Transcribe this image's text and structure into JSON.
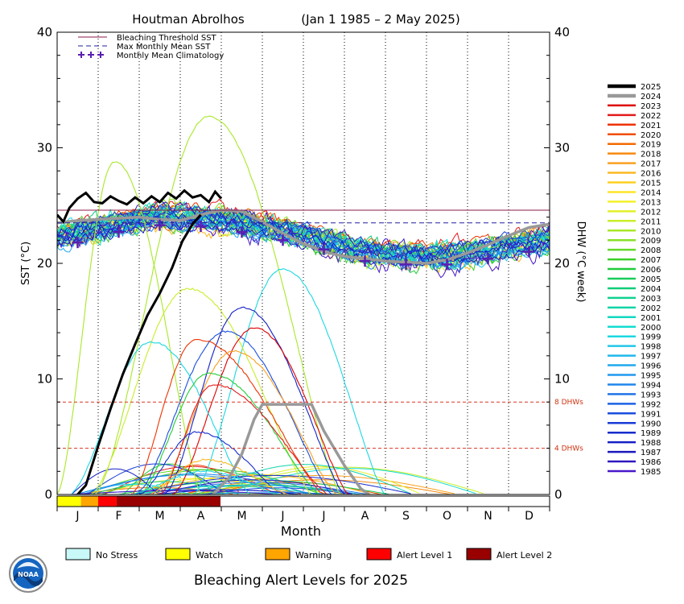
{
  "chart_data": {
    "type": "line",
    "title": "Houtman Abrolhos",
    "date_range": "(Jan 1 1985 – 2 May 2025)",
    "xlabel": "Month",
    "ylabel_left": "SST (°C)",
    "ylabel_right": "DHW (°C week)",
    "ylim": [
      0,
      40
    ],
    "x_months": [
      "J",
      "F",
      "M",
      "A",
      "M",
      "J",
      "J",
      "A",
      "S",
      "O",
      "N",
      "D"
    ],
    "y_ticks": [
      0,
      10,
      20,
      30,
      40
    ],
    "bleaching_threshold_sst": 24.6,
    "max_monthly_mean_sst": 23.5,
    "dhw_thresholds": [
      {
        "value": 8,
        "label": "8 DHWs"
      },
      {
        "value": 4,
        "label": "4 DHWs"
      }
    ],
    "legend_top": [
      {
        "label": "Bleaching Threshold SST",
        "style": "solid",
        "color": "#8b1a4a"
      },
      {
        "label": "Max Monthly Mean SST",
        "style": "dashed",
        "color": "#2020a0"
      },
      {
        "label": "Monthly Mean Climatology",
        "style": "plus",
        "color": "#5a1fb0"
      }
    ],
    "climatology": [
      {
        "month": 0.5,
        "value": 21.8
      },
      {
        "month": 1.5,
        "value": 22.7
      },
      {
        "month": 2.5,
        "value": 23.3
      },
      {
        "month": 3.5,
        "value": 23.2
      },
      {
        "month": 4.5,
        "value": 22.7
      },
      {
        "month": 5.5,
        "value": 22.0
      },
      {
        "month": 6.5,
        "value": 21.2
      },
      {
        "month": 7.5,
        "value": 20.2
      },
      {
        "month": 8.5,
        "value": 19.9
      },
      {
        "month": 9.5,
        "value": 19.9
      },
      {
        "month": 10.5,
        "value": 20.4
      },
      {
        "month": 11.5,
        "value": 21.0
      }
    ],
    "years": [
      {
        "year": "2025",
        "color": "#000000"
      },
      {
        "year": "2024",
        "color": "#999999"
      },
      {
        "year": "2023",
        "color": "#dd0000"
      },
      {
        "year": "2022",
        "color": "#e31a1c"
      },
      {
        "year": "2021",
        "color": "#ee3300"
      },
      {
        "year": "2020",
        "color": "#f04e00"
      },
      {
        "year": "2019",
        "color": "#f46a00"
      },
      {
        "year": "2018",
        "color": "#f68a10"
      },
      {
        "year": "2017",
        "color": "#f9a020"
      },
      {
        "year": "2016",
        "color": "#fbb820"
      },
      {
        "year": "2015",
        "color": "#fdd020"
      },
      {
        "year": "2014",
        "color": "#fde526"
      },
      {
        "year": "2013",
        "color": "#f3f02a"
      },
      {
        "year": "2012",
        "color": "#e2f02a"
      },
      {
        "year": "2011",
        "color": "#c8ee2a"
      },
      {
        "year": "2010",
        "color": "#a8e82a"
      },
      {
        "year": "2009",
        "color": "#88e028"
      },
      {
        "year": "2008",
        "color": "#64d828"
      },
      {
        "year": "2007",
        "color": "#3cd028"
      },
      {
        "year": "2006",
        "color": "#22cc3a"
      },
      {
        "year": "2005",
        "color": "#18cc5a"
      },
      {
        "year": "2004",
        "color": "#10cc78"
      },
      {
        "year": "2003",
        "color": "#10d090"
      },
      {
        "year": "2002",
        "color": "#10d4a8"
      },
      {
        "year": "2001",
        "color": "#10d8c0"
      },
      {
        "year": "2000",
        "color": "#14dcd0"
      },
      {
        "year": "1999",
        "color": "#1cd8e0"
      },
      {
        "year": "1998",
        "color": "#20c8e8"
      },
      {
        "year": "1997",
        "color": "#20b8ec"
      },
      {
        "year": "1996",
        "color": "#20a8ee"
      },
      {
        "year": "1995",
        "color": "#2098ee"
      },
      {
        "year": "1994",
        "color": "#2086ec"
      },
      {
        "year": "1993",
        "color": "#2074e8"
      },
      {
        "year": "1992",
        "color": "#1c60e4"
      },
      {
        "year": "1991",
        "color": "#1a4ede"
      },
      {
        "year": "1990",
        "color": "#183cd6"
      },
      {
        "year": "1989",
        "color": "#162ccc"
      },
      {
        "year": "1988",
        "color": "#1420c4"
      },
      {
        "year": "1987",
        "color": "#1c18bc"
      },
      {
        "year": "1986",
        "color": "#3018c0"
      },
      {
        "year": "1985",
        "color": "#4818c8"
      }
    ],
    "sst_2025": [
      [
        0.0,
        24.2
      ],
      [
        0.15,
        23.6
      ],
      [
        0.3,
        24.8
      ],
      [
        0.5,
        25.6
      ],
      [
        0.7,
        26.1
      ],
      [
        0.9,
        25.3
      ],
      [
        1.1,
        25.2
      ],
      [
        1.3,
        25.8
      ],
      [
        1.5,
        25.4
      ],
      [
        1.7,
        25.1
      ],
      [
        1.9,
        25.7
      ],
      [
        2.1,
        25.2
      ],
      [
        2.3,
        25.8
      ],
      [
        2.5,
        25.3
      ],
      [
        2.7,
        26.1
      ],
      [
        2.9,
        25.6
      ],
      [
        3.1,
        26.3
      ],
      [
        3.3,
        25.7
      ],
      [
        3.5,
        25.9
      ],
      [
        3.7,
        25.3
      ],
      [
        3.85,
        26.2
      ],
      [
        4.0,
        25.6
      ]
    ],
    "sst_2024": [
      [
        0.0,
        23.5
      ],
      [
        0.5,
        23.7
      ],
      [
        1.0,
        23.8
      ],
      [
        1.5,
        23.9
      ],
      [
        2.0,
        24.0
      ],
      [
        2.5,
        23.8
      ],
      [
        3.0,
        23.7
      ],
      [
        3.5,
        24.2
      ],
      [
        4.0,
        24.6
      ],
      [
        4.5,
        24.5
      ],
      [
        5.0,
        23.6
      ],
      [
        5.5,
        22.6
      ],
      [
        6.0,
        21.7
      ],
      [
        6.5,
        21.0
      ],
      [
        7.0,
        20.6
      ],
      [
        7.5,
        20.4
      ],
      [
        8.0,
        20.2
      ],
      [
        8.5,
        20.1
      ],
      [
        9.0,
        20.0
      ],
      [
        9.5,
        20.3
      ],
      [
        10.0,
        20.9
      ],
      [
        10.5,
        21.6
      ],
      [
        11.0,
        22.4
      ],
      [
        11.5,
        23.1
      ],
      [
        12.0,
        23.4
      ]
    ],
    "dhw_2025": [
      [
        0.5,
        0
      ],
      [
        0.7,
        0.8
      ],
      [
        1.0,
        4.2
      ],
      [
        1.3,
        7.4
      ],
      [
        1.6,
        10.4
      ],
      [
        1.9,
        13.0
      ],
      [
        2.2,
        15.5
      ],
      [
        2.5,
        17.4
      ],
      [
        2.8,
        19.6
      ],
      [
        3.05,
        21.9
      ],
      [
        3.3,
        23.4
      ],
      [
        3.5,
        24.2
      ]
    ],
    "dhw_2024": [
      [
        3.8,
        0
      ],
      [
        4.2,
        1.5
      ],
      [
        4.5,
        3.5
      ],
      [
        4.8,
        6.5
      ],
      [
        5.0,
        7.8
      ],
      [
        5.5,
        7.8
      ],
      [
        6.0,
        7.8
      ],
      [
        6.2,
        7.8
      ],
      [
        6.5,
        5.5
      ],
      [
        7.0,
        2.5
      ],
      [
        7.4,
        0.5
      ],
      [
        7.6,
        0
      ]
    ],
    "dhw_peak_curves": [
      {
        "peak_month": 3.7,
        "peak": 32.7,
        "start": 0.9,
        "end": 6.9,
        "color": "#a8e82a"
      },
      {
        "peak_month": 1.4,
        "peak": 28.8,
        "start": 0.0,
        "end": 3.5,
        "color": "#a8e82a"
      },
      {
        "peak_month": 5.5,
        "peak": 19.5,
        "start": 3.3,
        "end": 8.0,
        "color": "#1cd8e0"
      },
      {
        "peak_month": 3.2,
        "peak": 17.8,
        "start": 0.8,
        "end": 6.2,
        "color": "#c8ee2a"
      },
      {
        "peak_month": 4.5,
        "peak": 16.2,
        "start": 2.6,
        "end": 7.0,
        "color": "#1420c4"
      },
      {
        "peak_month": 4.8,
        "peak": 14.4,
        "start": 2.8,
        "end": 7.1,
        "color": "#dd0000"
      },
      {
        "peak_month": 4.1,
        "peak": 14.1,
        "start": 1.9,
        "end": 6.7,
        "color": "#1a4ede"
      },
      {
        "peak_month": 2.3,
        "peak": 13.2,
        "start": 0.3,
        "end": 4.7,
        "color": "#1cd8e0"
      },
      {
        "peak_month": 3.4,
        "peak": 13.4,
        "start": 1.8,
        "end": 6.5,
        "color": "#ee3300"
      },
      {
        "peak_month": 4.3,
        "peak": 12.4,
        "start": 2.4,
        "end": 6.8,
        "color": "#f9a020"
      },
      {
        "peak_month": 3.7,
        "peak": 10.5,
        "start": 2.0,
        "end": 6.4,
        "color": "#22cc3a"
      },
      {
        "peak_month": 3.8,
        "peak": 9.5,
        "start": 2.5,
        "end": 6.6,
        "color": "#e31a1c"
      },
      {
        "peak_month": 3.4,
        "peak": 5.4,
        "start": 2.0,
        "end": 5.5,
        "color": "#162ccc"
      },
      {
        "peak_month": 3.6,
        "peak": 3.0,
        "start": 2.2,
        "end": 5.6,
        "color": "#fbb820"
      },
      {
        "peak_month": 3.6,
        "peak": 2.0,
        "start": 1.7,
        "end": 5.4,
        "color": "#1cd8e0"
      }
    ],
    "alert_bar_2025": [
      {
        "from": 0.0,
        "to": 0.58,
        "level": "Watch",
        "color": "#ffff00"
      },
      {
        "from": 0.58,
        "to": 1.0,
        "level": "Warning",
        "color": "#ffa500"
      },
      {
        "from": 1.0,
        "to": 1.45,
        "level": "Alert Level 1",
        "color": "#ff0000"
      },
      {
        "from": 1.45,
        "to": 3.98,
        "level": "Alert Level 2",
        "color": "#990000"
      }
    ],
    "alert_legend": [
      {
        "label": "No Stress",
        "color": "#c8f8f8"
      },
      {
        "label": "Watch",
        "color": "#ffff00"
      },
      {
        "label": "Warning",
        "color": "#ffa500"
      },
      {
        "label": "Alert Level 1",
        "color": "#ff0000"
      },
      {
        "label": "Alert Level 2",
        "color": "#990000"
      }
    ],
    "footer_title": "Bleaching Alert Levels for 2025",
    "logo_text": "NOAA"
  }
}
